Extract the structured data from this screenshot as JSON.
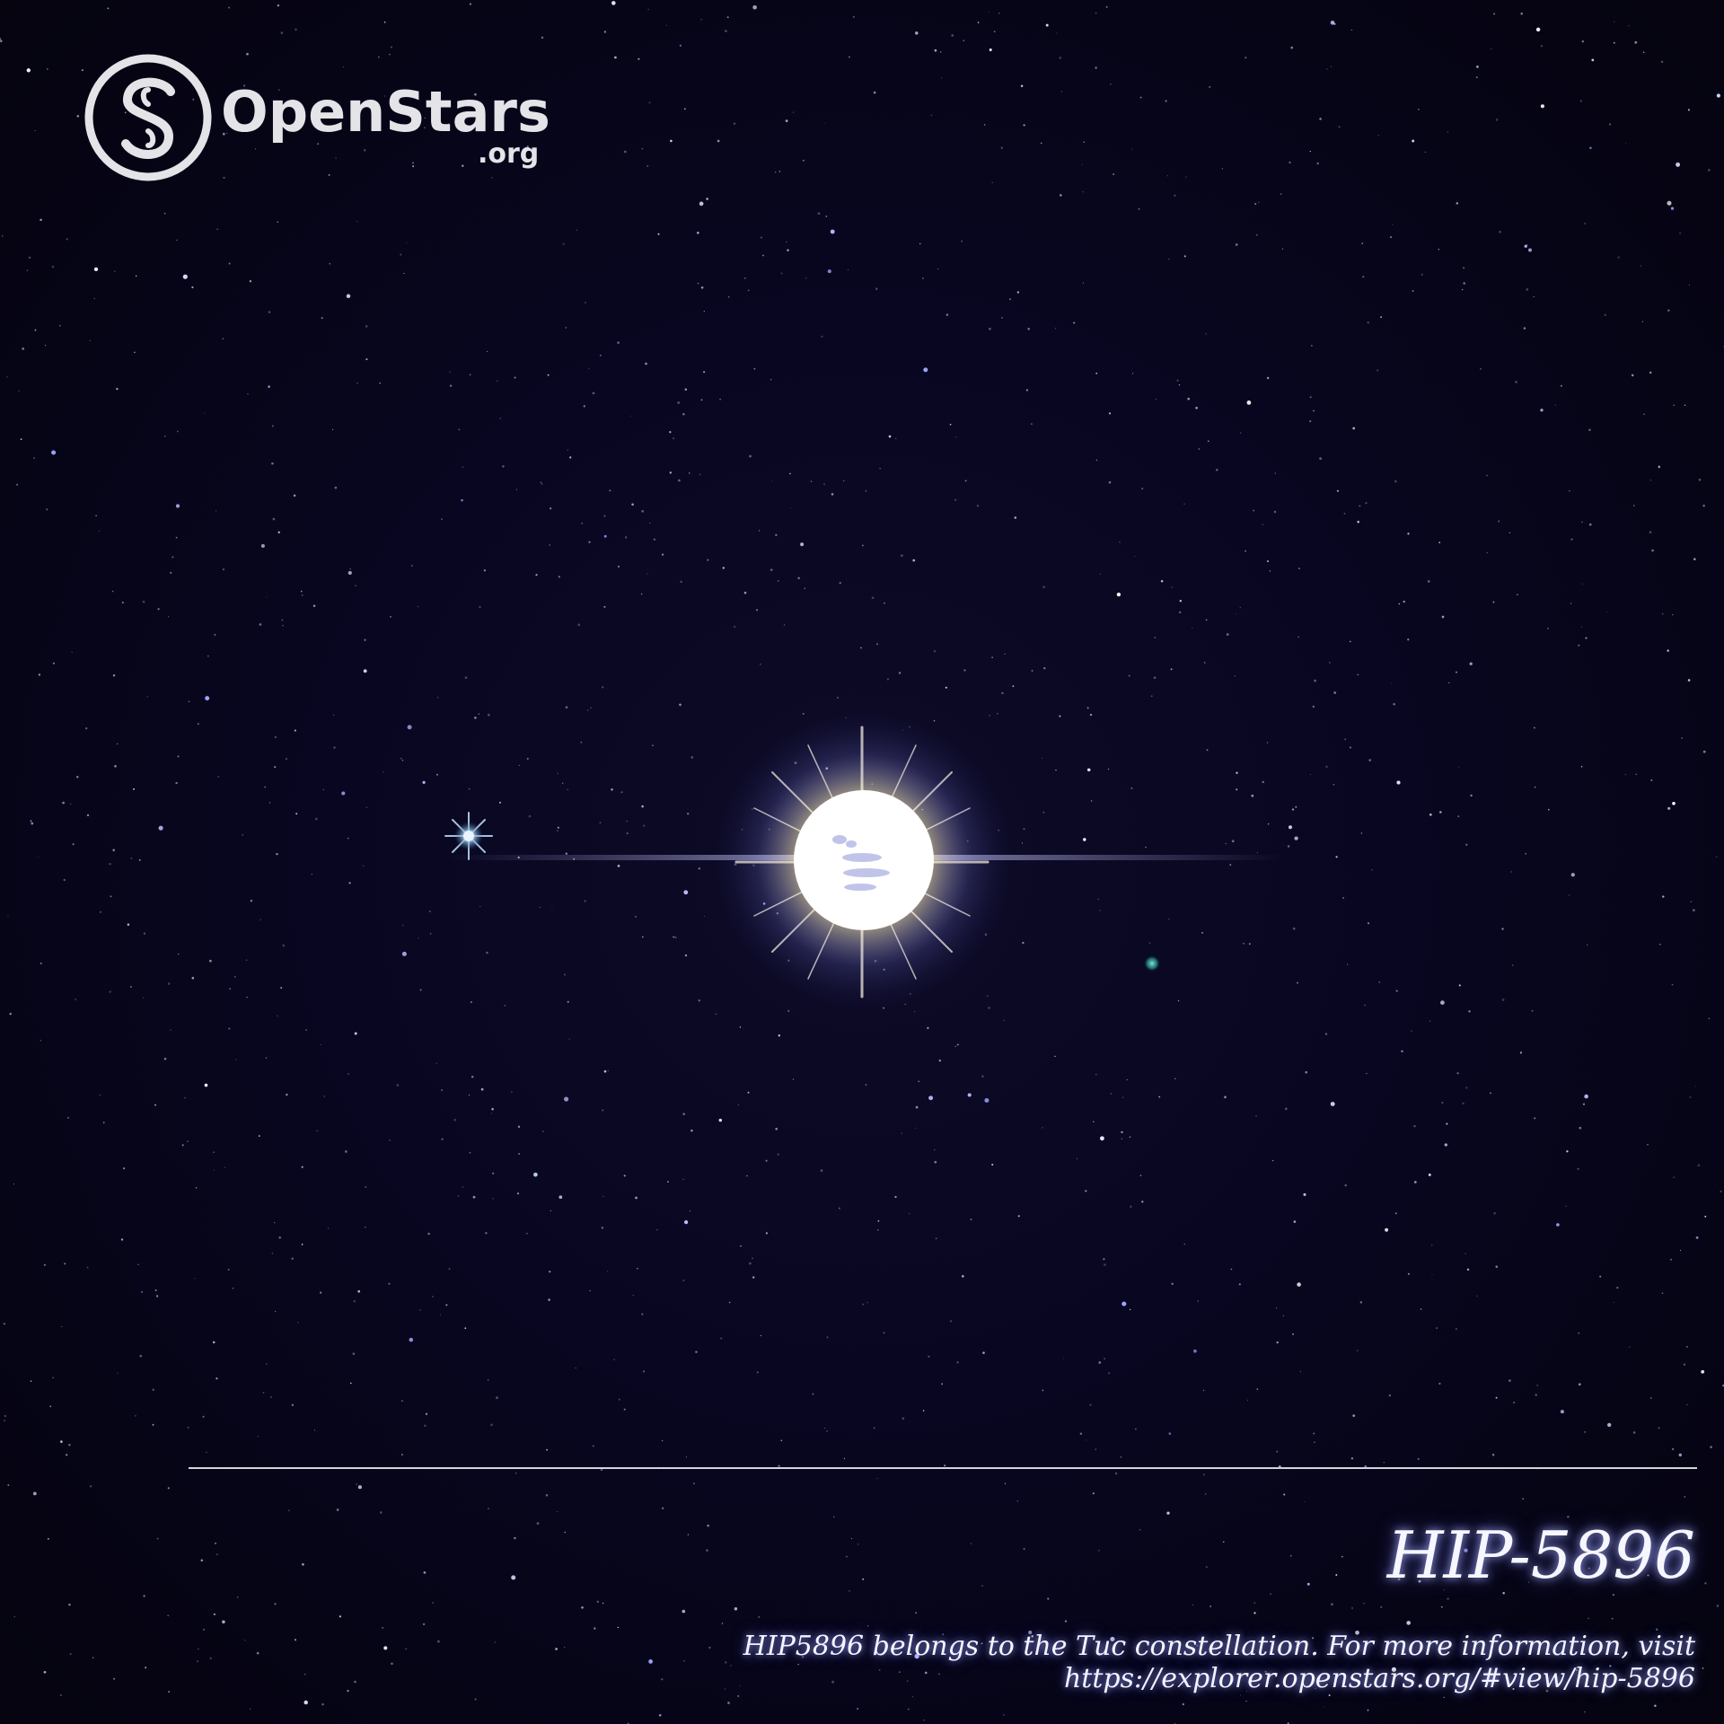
{
  "logo": {
    "word": "OpenStars",
    "tld": ".org",
    "mark_letter": "S"
  },
  "star": {
    "name": "HIP-5896"
  },
  "caption": {
    "line1": "HIP5896 belongs to the Tuc constellation. For more information, visit",
    "line2": "https://explorer.openstars.org/#view/hip-5896"
  },
  "colors": {
    "sky": "#05040f",
    "text": "#f6f6ff",
    "glow": "#a0a5ff",
    "divider": "#d4d4df"
  }
}
